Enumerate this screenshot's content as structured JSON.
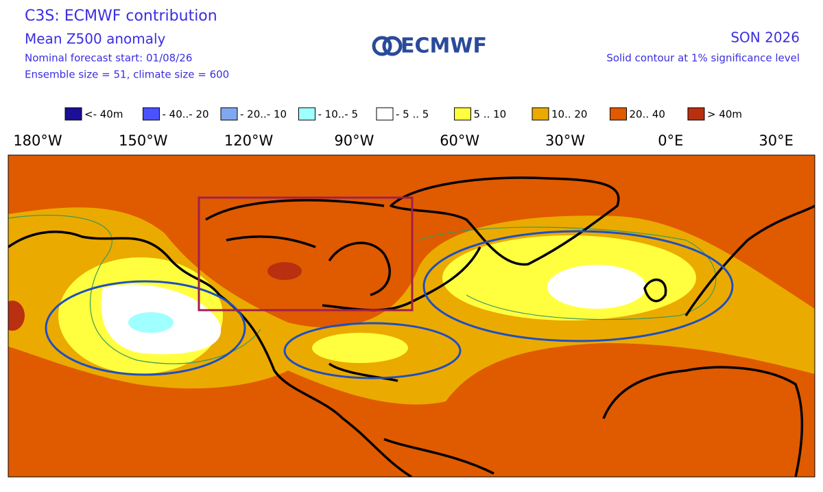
{
  "header": {
    "title": "C3S: ECMWF contribution",
    "subtitle": "Mean Z500 anomaly",
    "forecast_start": "Nominal forecast start: 01/08/26",
    "ensemble": "Ensemble size = 51, climate size = 600",
    "logo": "ECMWF",
    "season": "SON 2026",
    "note": "Solid contour at 1% significance level"
  },
  "legend": [
    {
      "label": "<- 40m",
      "color": "#1a0f96"
    },
    {
      "label": "- 40..- 20",
      "color": "#4a52ff"
    },
    {
      "label": "- 20..- 10",
      "color": "#80a8f0"
    },
    {
      "label": "- 10..- 5",
      "color": "#a0ffff"
    },
    {
      "label": "- 5 .. 5",
      "color": "#ffffff"
    },
    {
      "label": "5 .. 10",
      "color": "#ffff40"
    },
    {
      "label": "10.. 20",
      "color": "#ebaa00"
    },
    {
      "label": "20.. 40",
      "color": "#e05a00"
    },
    {
      "label": "> 40m",
      "color": "#b83010"
    }
  ],
  "longitude_labels": [
    "180°W",
    "150°W",
    "120°W",
    "90°W",
    "60°W",
    "30°W",
    "0°E",
    "30°E"
  ]
}
